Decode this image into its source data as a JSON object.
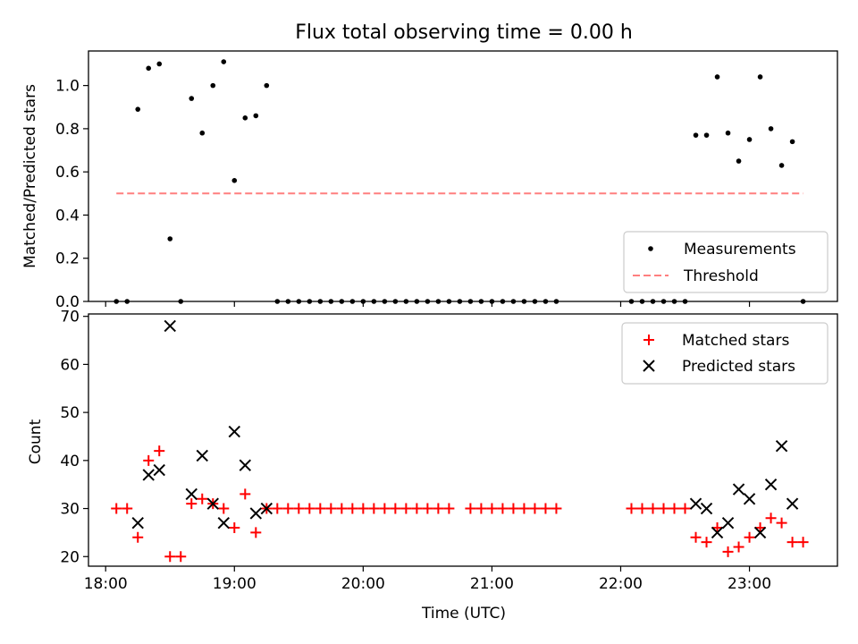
{
  "figure": {
    "title": "Flux total observing time = 0.00 h",
    "xlabel": "Time (UTC)"
  },
  "colors": {
    "measurement": "#000000",
    "threshold": "#ff7f7f",
    "matched": "#ff0000",
    "predicted": "#000000"
  },
  "chart_data": [
    {
      "type": "scatter",
      "panel": "top",
      "ylabel": "Matched/Predicted stars",
      "ylim": [
        0,
        1.16
      ],
      "xlim": [
        "17:52",
        "23:41"
      ],
      "x_ticks": [
        "18:00",
        "19:00",
        "20:00",
        "21:00",
        "22:00",
        "23:00"
      ],
      "y_ticks": [
        "0.0",
        "0.2",
        "0.4",
        "0.6",
        "0.8",
        "1.0"
      ],
      "legend": {
        "placement": "lower-right",
        "entries": [
          "Measurements",
          "Threshold"
        ]
      },
      "series": [
        {
          "name": "Measurements",
          "marker": "dot",
          "x": [
            "18:05",
            "18:10",
            "18:15",
            "18:20",
            "18:25",
            "18:30",
            "18:35",
            "18:40",
            "18:45",
            "18:50",
            "18:55",
            "19:00",
            "19:05",
            "19:10",
            "19:15",
            "19:20",
            "19:25",
            "19:30",
            "19:35",
            "19:40",
            "19:45",
            "19:50",
            "19:55",
            "20:00",
            "20:05",
            "20:10",
            "20:15",
            "20:20",
            "20:25",
            "20:30",
            "20:35",
            "20:40",
            "20:45",
            "20:50",
            "20:55",
            "21:00",
            "21:05",
            "21:10",
            "21:15",
            "21:20",
            "21:25",
            "21:30",
            "22:05",
            "22:10",
            "22:15",
            "22:20",
            "22:25",
            "22:30",
            "22:35",
            "22:40",
            "22:45",
            "22:50",
            "22:55",
            "23:00",
            "23:05",
            "23:10",
            "23:15",
            "23:20",
            "23:25"
          ],
          "y": [
            0,
            0,
            0.89,
            1.08,
            1.1,
            0.29,
            0,
            0.94,
            0.78,
            1.0,
            1.11,
            0.56,
            0.85,
            0.86,
            1.0,
            0,
            0,
            0,
            0,
            0,
            0,
            0,
            0,
            0,
            0,
            0,
            0,
            0,
            0,
            0,
            0,
            0,
            0,
            0,
            0,
            0,
            0,
            0,
            0,
            0,
            0,
            0,
            0,
            0,
            0,
            0,
            0,
            0,
            0.77,
            0.77,
            1.04,
            0.78,
            0.65,
            0.75,
            1.04,
            0.8,
            0.63,
            0.74,
            0
          ]
        },
        {
          "name": "Threshold",
          "style": "dashed-line",
          "x": [
            "18:05",
            "23:25"
          ],
          "y": [
            0.5,
            0.5
          ]
        }
      ]
    },
    {
      "type": "scatter",
      "panel": "bottom",
      "ylabel": "Count",
      "ylim": [
        18,
        70.5
      ],
      "xlim": [
        "17:52",
        "23:41"
      ],
      "x_ticks": [
        "18:00",
        "19:00",
        "20:00",
        "21:00",
        "22:00",
        "23:00"
      ],
      "y_ticks": [
        "20",
        "30",
        "40",
        "50",
        "60",
        "70"
      ],
      "legend": {
        "placement": "upper-right",
        "entries": [
          "Matched stars",
          "Predicted stars"
        ]
      },
      "series": [
        {
          "name": "Matched stars",
          "marker": "plus",
          "x": [
            "18:05",
            "18:10",
            "18:15",
            "18:20",
            "18:25",
            "18:30",
            "18:35",
            "18:40",
            "18:45",
            "18:50",
            "18:55",
            "19:00",
            "19:05",
            "19:10",
            "19:15",
            "19:20",
            "19:25",
            "19:30",
            "19:35",
            "19:40",
            "19:45",
            "19:50",
            "19:55",
            "20:00",
            "20:05",
            "20:10",
            "20:15",
            "20:20",
            "20:25",
            "20:30",
            "20:35",
            "20:40",
            "20:50",
            "20:55",
            "21:00",
            "21:05",
            "21:10",
            "21:15",
            "21:20",
            "21:25",
            "21:30",
            "22:05",
            "22:10",
            "22:15",
            "22:20",
            "22:25",
            "22:30",
            "22:35",
            "22:40",
            "22:45",
            "22:50",
            "22:55",
            "23:00",
            "23:05",
            "23:10",
            "23:15",
            "23:20",
            "23:25"
          ],
          "y": [
            30,
            30,
            24,
            40,
            42,
            20,
            20,
            31,
            32,
            31,
            30,
            26,
            33,
            25,
            30,
            30,
            30,
            30,
            30,
            30,
            30,
            30,
            30,
            30,
            30,
            30,
            30,
            30,
            30,
            30,
            30,
            30,
            30,
            30,
            30,
            30,
            30,
            30,
            30,
            30,
            30,
            30,
            30,
            30,
            30,
            30,
            30,
            24,
            23,
            26,
            21,
            22,
            24,
            26,
            28,
            27,
            23,
            23
          ]
        },
        {
          "name": "Predicted stars",
          "marker": "x",
          "x": [
            "18:15",
            "18:20",
            "18:25",
            "18:30",
            "18:40",
            "18:45",
            "18:50",
            "18:55",
            "19:00",
            "19:05",
            "19:10",
            "19:15",
            "22:35",
            "22:40",
            "22:45",
            "22:50",
            "22:55",
            "23:00",
            "23:05",
            "23:10",
            "23:15",
            "23:20"
          ],
          "y": [
            27,
            37,
            38,
            68,
            33,
            41,
            31,
            27,
            46,
            39,
            29,
            30,
            31,
            30,
            25,
            27,
            34,
            32,
            25,
            35,
            43,
            31
          ]
        }
      ]
    }
  ]
}
